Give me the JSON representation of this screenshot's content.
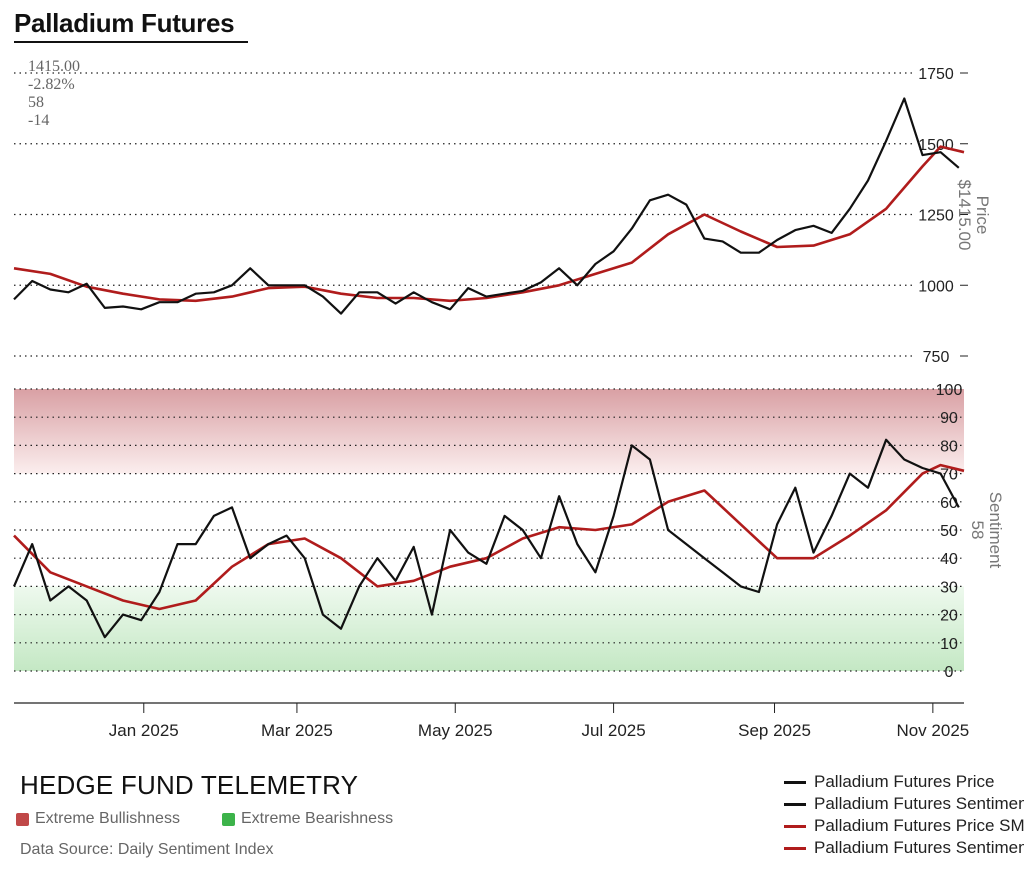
{
  "title": "Palladium Futures",
  "stats": [
    "1415.00",
    "-2.82%",
    "58",
    "-14"
  ],
  "brand": "HEDGE FUND TELEMETRY",
  "zone_legend": [
    {
      "label": "Extreme Bullishness",
      "color": "#c04848"
    },
    {
      "label": "Extreme Bearishness",
      "color": "#3cb34a"
    }
  ],
  "source": "Data Source: Daily Sentiment Index",
  "legend": [
    {
      "label": "Palladium Futures Price",
      "color": "#111111"
    },
    {
      "label": "Palladium Futures Sentiment",
      "color": "#111111"
    },
    {
      "label": "Palladium Futures Price SMA",
      "color": "#b01c1c"
    },
    {
      "label": "Palladium Futures Sentiment SMA",
      "color": "#b01c1c"
    }
  ],
  "chart_data": {
    "type": "line",
    "x_ticks": [
      {
        "label": "Jan 2025",
        "date": "2025-01-01"
      },
      {
        "label": "Mar 2025",
        "date": "2025-03-01"
      },
      {
        "label": "May 2025",
        "date": "2025-05-01"
      },
      {
        "label": "Jul 2025",
        "date": "2025-07-01"
      },
      {
        "label": "Sep 2025",
        "date": "2025-09-01"
      },
      {
        "label": "Nov 2025",
        "date": "2025-11-01"
      }
    ],
    "x_range": [
      "2024-11-12",
      "2025-11-13"
    ],
    "price_panel": {
      "ylabel": "Price",
      "last_label": "$1415.00",
      "yticks": [
        750,
        1000,
        1250,
        1500,
        1750
      ],
      "ylim": [
        750,
        1750
      ],
      "price": [
        [
          "2024-11-12",
          950
        ],
        [
          "2024-11-19",
          1015
        ],
        [
          "2024-11-26",
          985
        ],
        [
          "2024-12-03",
          975
        ],
        [
          "2024-12-10",
          1005
        ],
        [
          "2024-12-17",
          920
        ],
        [
          "2024-12-24",
          925
        ],
        [
          "2024-12-31",
          915
        ],
        [
          "2025-01-07",
          940
        ],
        [
          "2025-01-14",
          940
        ],
        [
          "2025-01-21",
          970
        ],
        [
          "2025-01-28",
          975
        ],
        [
          "2025-02-04",
          1000
        ],
        [
          "2025-02-11",
          1060
        ],
        [
          "2025-02-18",
          1000
        ],
        [
          "2025-02-25",
          1000
        ],
        [
          "2025-03-04",
          1000
        ],
        [
          "2025-03-11",
          960
        ],
        [
          "2025-03-18",
          900
        ],
        [
          "2025-03-25",
          975
        ],
        [
          "2025-04-01",
          975
        ],
        [
          "2025-04-08",
          935
        ],
        [
          "2025-04-15",
          975
        ],
        [
          "2025-04-22",
          940
        ],
        [
          "2025-04-29",
          915
        ],
        [
          "2025-05-06",
          990
        ],
        [
          "2025-05-13",
          960
        ],
        [
          "2025-05-20",
          970
        ],
        [
          "2025-05-27",
          980
        ],
        [
          "2025-06-03",
          1010
        ],
        [
          "2025-06-10",
          1060
        ],
        [
          "2025-06-17",
          1000
        ],
        [
          "2025-06-24",
          1075
        ],
        [
          "2025-07-01",
          1120
        ],
        [
          "2025-07-08",
          1200
        ],
        [
          "2025-07-15",
          1300
        ],
        [
          "2025-07-22",
          1320
        ],
        [
          "2025-07-29",
          1285
        ],
        [
          "2025-08-05",
          1165
        ],
        [
          "2025-08-12",
          1155
        ],
        [
          "2025-08-19",
          1115
        ],
        [
          "2025-08-26",
          1115
        ],
        [
          "2025-09-02",
          1160
        ],
        [
          "2025-09-09",
          1195
        ],
        [
          "2025-09-16",
          1210
        ],
        [
          "2025-09-23",
          1185
        ],
        [
          "2025-09-30",
          1270
        ],
        [
          "2025-10-07",
          1370
        ],
        [
          "2025-10-14",
          1510
        ],
        [
          "2025-10-21",
          1660
        ],
        [
          "2025-10-28",
          1460
        ],
        [
          "2025-11-04",
          1470
        ],
        [
          "2025-11-11",
          1415
        ]
      ],
      "sma": [
        [
          "2024-11-12",
          1060
        ],
        [
          "2024-11-26",
          1040
        ],
        [
          "2024-12-10",
          995
        ],
        [
          "2024-12-24",
          970
        ],
        [
          "2025-01-07",
          950
        ],
        [
          "2025-01-21",
          945
        ],
        [
          "2025-02-04",
          960
        ],
        [
          "2025-02-18",
          990
        ],
        [
          "2025-03-04",
          995
        ],
        [
          "2025-03-18",
          970
        ],
        [
          "2025-04-01",
          955
        ],
        [
          "2025-04-15",
          955
        ],
        [
          "2025-04-29",
          945
        ],
        [
          "2025-05-13",
          955
        ],
        [
          "2025-05-27",
          975
        ],
        [
          "2025-06-10",
          1000
        ],
        [
          "2025-06-24",
          1040
        ],
        [
          "2025-07-08",
          1080
        ],
        [
          "2025-07-22",
          1180
        ],
        [
          "2025-08-05",
          1250
        ],
        [
          "2025-08-19",
          1190
        ],
        [
          "2025-09-02",
          1135
        ],
        [
          "2025-09-16",
          1140
        ],
        [
          "2025-09-30",
          1180
        ],
        [
          "2025-10-14",
          1270
        ],
        [
          "2025-10-28",
          1420
        ],
        [
          "2025-11-04",
          1490
        ],
        [
          "2025-11-13",
          1470
        ]
      ]
    },
    "sentiment_panel": {
      "ylabel": "Sentiment",
      "last_label": "58",
      "yticks": [
        0,
        10,
        20,
        30,
        40,
        50,
        60,
        70,
        80,
        90,
        100
      ],
      "ylim": [
        0,
        100
      ],
      "extreme_bullish_above": 70,
      "extreme_bearish_below": 30,
      "sentiment": [
        [
          "2024-11-12",
          30
        ],
        [
          "2024-11-19",
          45
        ],
        [
          "2024-11-26",
          25
        ],
        [
          "2024-12-03",
          30
        ],
        [
          "2024-12-10",
          25
        ],
        [
          "2024-12-17",
          12
        ],
        [
          "2024-12-24",
          20
        ],
        [
          "2024-12-31",
          18
        ],
        [
          "2025-01-07",
          28
        ],
        [
          "2025-01-14",
          45
        ],
        [
          "2025-01-21",
          45
        ],
        [
          "2025-01-28",
          55
        ],
        [
          "2025-02-04",
          58
        ],
        [
          "2025-02-11",
          40
        ],
        [
          "2025-02-18",
          45
        ],
        [
          "2025-02-25",
          48
        ],
        [
          "2025-03-04",
          40
        ],
        [
          "2025-03-11",
          20
        ],
        [
          "2025-03-18",
          15
        ],
        [
          "2025-03-25",
          30
        ],
        [
          "2025-04-01",
          40
        ],
        [
          "2025-04-08",
          32
        ],
        [
          "2025-04-15",
          44
        ],
        [
          "2025-04-22",
          20
        ],
        [
          "2025-04-29",
          50
        ],
        [
          "2025-05-06",
          42
        ],
        [
          "2025-05-13",
          38
        ],
        [
          "2025-05-20",
          55
        ],
        [
          "2025-05-27",
          50
        ],
        [
          "2025-06-03",
          40
        ],
        [
          "2025-06-10",
          62
        ],
        [
          "2025-06-17",
          45
        ],
        [
          "2025-06-24",
          35
        ],
        [
          "2025-07-01",
          55
        ],
        [
          "2025-07-08",
          80
        ],
        [
          "2025-07-15",
          75
        ],
        [
          "2025-07-22",
          50
        ],
        [
          "2025-07-29",
          45
        ],
        [
          "2025-08-05",
          40
        ],
        [
          "2025-08-12",
          35
        ],
        [
          "2025-08-19",
          30
        ],
        [
          "2025-08-26",
          28
        ],
        [
          "2025-09-02",
          52
        ],
        [
          "2025-09-09",
          65
        ],
        [
          "2025-09-16",
          42
        ],
        [
          "2025-09-23",
          55
        ],
        [
          "2025-09-30",
          70
        ],
        [
          "2025-10-07",
          65
        ],
        [
          "2025-10-14",
          82
        ],
        [
          "2025-10-21",
          75
        ],
        [
          "2025-10-28",
          72
        ],
        [
          "2025-11-04",
          70
        ],
        [
          "2025-11-11",
          58
        ]
      ],
      "sma": [
        [
          "2024-11-12",
          48
        ],
        [
          "2024-11-26",
          35
        ],
        [
          "2024-12-10",
          30
        ],
        [
          "2024-12-24",
          25
        ],
        [
          "2025-01-07",
          22
        ],
        [
          "2025-01-21",
          25
        ],
        [
          "2025-02-04",
          37
        ],
        [
          "2025-02-18",
          45
        ],
        [
          "2025-03-04",
          47
        ],
        [
          "2025-03-18",
          40
        ],
        [
          "2025-04-01",
          30
        ],
        [
          "2025-04-15",
          32
        ],
        [
          "2025-04-29",
          37
        ],
        [
          "2025-05-13",
          40
        ],
        [
          "2025-05-27",
          47
        ],
        [
          "2025-06-10",
          51
        ],
        [
          "2025-06-24",
          50
        ],
        [
          "2025-07-08",
          52
        ],
        [
          "2025-07-22",
          60
        ],
        [
          "2025-08-05",
          64
        ],
        [
          "2025-08-19",
          52
        ],
        [
          "2025-09-02",
          40
        ],
        [
          "2025-09-16",
          40
        ],
        [
          "2025-09-30",
          48
        ],
        [
          "2025-10-14",
          57
        ],
        [
          "2025-10-28",
          70
        ],
        [
          "2025-11-04",
          73
        ],
        [
          "2025-11-13",
          71
        ]
      ]
    }
  }
}
